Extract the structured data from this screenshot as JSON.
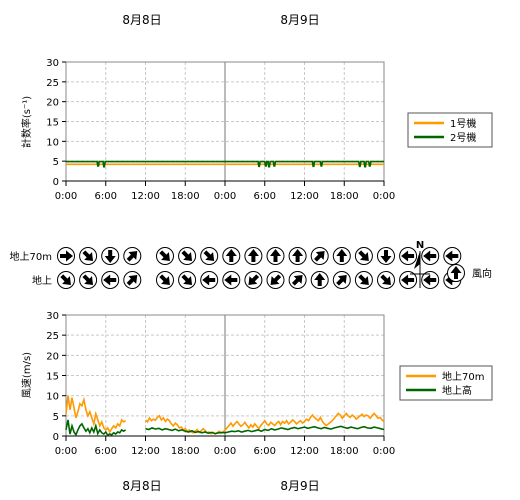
{
  "dates": {
    "day1": "8月8日",
    "day2": "8月9日"
  },
  "x_ticks": [
    "0:00",
    "6:00",
    "12:00",
    "18:00",
    "0:00",
    "6:00",
    "12:00",
    "18:00",
    "0:00"
  ],
  "chart_data": [
    {
      "type": "line",
      "ylabel": "計数率(s⁻¹)",
      "ylim": [
        0,
        30
      ],
      "y_ticks": [
        "0",
        "5",
        "10",
        "15",
        "20",
        "25",
        "30"
      ],
      "x_unit": "hours from 8月8日 0:00",
      "xlim": [
        0,
        48
      ],
      "grid": true,
      "legend_position": "right",
      "series": [
        {
          "name": "1号機",
          "color": "#ff9900",
          "x": [
            0,
            48
          ],
          "y": [
            4.2,
            4.2
          ]
        },
        {
          "name": "2号機",
          "color": "#006600",
          "x": [
            0,
            4.7,
            4.8,
            4.9,
            5.0,
            5.6,
            5.7,
            5.8,
            5.9,
            6.0,
            9,
            18,
            24,
            29,
            29.1,
            29.2,
            29.3,
            30.0,
            30.1,
            30.2,
            30.3,
            30.5,
            30.6,
            30.7,
            30.8,
            31.3,
            31.4,
            31.5,
            31.6,
            33,
            37.2,
            37.3,
            37.4,
            37.5,
            38.4,
            38.5,
            38.6,
            38.7,
            39,
            42,
            44.2,
            44.3,
            44.4,
            44.5,
            45.0,
            45.1,
            45.2,
            45.3,
            45.7,
            45.8,
            45.9,
            46.0,
            48
          ],
          "y": [
            4.9,
            4.9,
            3.8,
            3.8,
            4.9,
            4.9,
            3.6,
            3.6,
            4.9,
            4.9,
            4.9,
            4.9,
            4.9,
            4.9,
            3.7,
            3.7,
            4.9,
            4.9,
            3.8,
            3.8,
            4.9,
            4.9,
            3.6,
            3.6,
            4.9,
            4.9,
            3.8,
            3.8,
            4.9,
            4.9,
            4.9,
            3.7,
            3.7,
            4.9,
            4.9,
            3.8,
            3.8,
            4.9,
            4.9,
            4.9,
            4.9,
            3.7,
            3.7,
            4.9,
            4.9,
            3.6,
            3.6,
            4.9,
            4.9,
            3.8,
            3.8,
            4.9,
            4.9
          ]
        }
      ]
    },
    {
      "type": "line",
      "ylabel": "風速(m/s)",
      "ylim": [
        0,
        30
      ],
      "y_ticks": [
        "0",
        "5",
        "10",
        "15",
        "20",
        "25",
        "30"
      ],
      "x_unit": "hours from 8月8日 0:00",
      "xlim": [
        0,
        48
      ],
      "grid": true,
      "legend_position": "right",
      "series": [
        {
          "name": "地上70m",
          "color": "#ff9900",
          "segments": [
            {
              "x": [
                0,
                0.3,
                0.6,
                0.9,
                1.2,
                1.5,
                1.8,
                2.1,
                2.4,
                2.7,
                3.0,
                3.3,
                3.6,
                3.9,
                4.2,
                4.5,
                4.8,
                5.1,
                5.4,
                5.7,
                6.0,
                6.3,
                6.6,
                6.9,
                7.2,
                7.5,
                7.8,
                8.1,
                8.4,
                8.7,
                9.0
              ],
              "y": [
                5.5,
                10.0,
                6.5,
                9.5,
                7.0,
                4.5,
                6.0,
                8.0,
                7.5,
                9.0,
                6.5,
                5.0,
                6.0,
                4.5,
                3.0,
                5.5,
                4.0,
                2.5,
                3.5,
                2.0,
                1.5,
                2.0,
                1.0,
                1.8,
                2.5,
                2.0,
                3.0,
                2.5,
                4.0,
                3.5,
                3.8
              ]
            },
            {
              "x": [
                12.0,
                12.3,
                12.6,
                12.9,
                13.2,
                13.5,
                13.8,
                14.1,
                14.4,
                14.7,
                15.0,
                15.3,
                15.6,
                15.9,
                16.2,
                16.5,
                16.8,
                17.1,
                17.4,
                17.7,
                18.0,
                18.3,
                18.6,
                18.9,
                19.2,
                19.5,
                19.8,
                20.1,
                20.4,
                20.7,
                21.0,
                21.3,
                21.6,
                21.9,
                22.2,
                22.5,
                22.8,
                23.1,
                23.4,
                23.7,
                24.0,
                24.3,
                24.6,
                24.9,
                25.2,
                25.5,
                25.8,
                26.1,
                26.4,
                26.7,
                27.0,
                27.3,
                27.6,
                27.9,
                28.2,
                28.5,
                28.8,
                29.1,
                29.4,
                29.7,
                30.0,
                30.3,
                30.6,
                30.9,
                31.2,
                31.5,
                31.8,
                32.1,
                32.4,
                32.7,
                33.0,
                33.3,
                33.6,
                33.9,
                34.2,
                34.5,
                34.8,
                35.1,
                35.4,
                35.7,
                36.0,
                36.3,
                36.6,
                36.9,
                37.2,
                37.5,
                37.8,
                38.1,
                38.4,
                38.7,
                39.0,
                39.3,
                39.6,
                39.9,
                40.2,
                40.5,
                40.8,
                41.1,
                41.4,
                41.7,
                42.0,
                42.3,
                42.6,
                42.9,
                43.2,
                43.5,
                43.8,
                44.1,
                44.4,
                44.7,
                45.0,
                45.3,
                45.6,
                45.9,
                46.2,
                46.5,
                46.8,
                47.1,
                47.4,
                47.7,
                48.0
              ],
              "y": [
                4.0,
                3.5,
                4.5,
                3.8,
                4.2,
                3.9,
                4.6,
                5.0,
                4.0,
                4.5,
                3.6,
                4.2,
                3.8,
                3.0,
                2.5,
                3.2,
                2.8,
                2.0,
                2.2,
                1.5,
                1.8,
                1.2,
                1.5,
                1.0,
                0.8,
                1.2,
                1.6,
                0.9,
                1.3,
                1.8,
                1.4,
                0.8,
                1.0,
                0.6,
                0.9,
                0.5,
                0.8,
                1.2,
                0.7,
                1.0,
                1.5,
                2.0,
                2.6,
                3.2,
                2.4,
                3.0,
                3.6,
                3.0,
                2.4,
                2.8,
                3.4,
                2.6,
                2.0,
                2.8,
                2.2,
                3.0,
                2.4,
                1.8,
                2.6,
                3.2,
                3.8,
                3.0,
                2.6,
                3.4,
                3.0,
                2.6,
                3.2,
                3.6,
                2.8,
                3.6,
                3.2,
                3.8,
                3.0,
                3.4,
                4.0,
                3.6,
                3.0,
                3.4,
                3.8,
                3.2,
                3.6,
                4.2,
                3.8,
                4.6,
                5.2,
                4.6,
                4.2,
                3.8,
                4.6,
                3.6,
                3.0,
                2.6,
                3.0,
                3.4,
                3.8,
                4.4,
                5.0,
                5.6,
                5.2,
                4.4,
                5.0,
                5.6,
                5.0,
                4.6,
                5.2,
                4.8,
                4.2,
                4.6,
                5.0,
                5.4,
                4.8,
                5.2,
                5.0,
                4.4,
                5.0,
                5.6,
                5.0,
                4.4,
                4.6,
                4.0,
                3.6
              ]
            }
          ]
        },
        {
          "name": "地上高",
          "color": "#006600",
          "segments": [
            {
              "x": [
                0,
                0.3,
                0.6,
                0.9,
                1.2,
                1.5,
                1.8,
                2.1,
                2.4,
                2.7,
                3.0,
                3.3,
                3.6,
                3.9,
                4.2,
                4.5,
                4.8,
                5.1,
                5.4,
                5.7,
                6.0,
                6.3,
                6.6,
                6.9,
                7.2,
                7.5,
                7.8,
                8.1,
                8.4,
                8.7,
                9.0
              ],
              "y": [
                1.5,
                4.0,
                0.5,
                2.5,
                1.0,
                0.3,
                1.5,
                2.5,
                3.0,
                2.0,
                1.2,
                1.8,
                0.8,
                2.0,
                1.0,
                2.5,
                0.6,
                1.5,
                0.8,
                0.5,
                1.0,
                0.2,
                0.5,
                0.3,
                0.8,
                0.5,
                1.0,
                0.8,
                1.5,
                1.2,
                1.5
              ]
            },
            {
              "x": [
                12.0,
                12.5,
                13.0,
                13.5,
                14.0,
                14.5,
                15.0,
                15.5,
                16.0,
                16.5,
                17.0,
                17.5,
                18.0,
                18.5,
                19.0,
                19.5,
                20.0,
                20.5,
                21.0,
                21.5,
                22.0,
                22.5,
                23.0,
                23.5,
                24.0,
                24.5,
                25.0,
                25.5,
                26.0,
                26.5,
                27.0,
                27.5,
                28.0,
                28.5,
                29.0,
                29.5,
                30.0,
                30.5,
                31.0,
                31.5,
                32.0,
                32.5,
                33.0,
                33.5,
                34.0,
                34.5,
                35.0,
                35.5,
                36.0,
                36.5,
                37.0,
                37.5,
                38.0,
                38.5,
                39.0,
                39.5,
                40.0,
                40.5,
                41.0,
                41.5,
                42.0,
                42.5,
                43.0,
                43.5,
                44.0,
                44.5,
                45.0,
                45.5,
                46.0,
                46.5,
                47.0,
                47.5,
                48.0
              ],
              "y": [
                1.8,
                1.6,
                2.0,
                1.7,
                1.9,
                1.5,
                1.8,
                1.6,
                1.4,
                1.7,
                1.3,
                1.5,
                1.2,
                1.0,
                1.3,
                0.9,
                1.1,
                0.8,
                1.0,
                0.7,
                0.9,
                0.6,
                0.8,
                0.9,
                0.8,
                1.0,
                1.2,
                1.1,
                1.3,
                1.0,
                1.2,
                1.4,
                1.1,
                1.3,
                1.5,
                1.2,
                1.6,
                1.4,
                1.8,
                1.5,
                1.7,
                2.0,
                1.8,
                1.6,
                1.9,
                2.1,
                1.8,
                2.0,
                2.2,
                1.9,
                2.1,
                2.3,
                2.0,
                1.8,
                2.1,
                1.9,
                1.7,
                2.0,
                2.2,
                2.4,
                2.1,
                1.9,
                2.2,
                2.0,
                1.8,
                2.1,
                2.3,
                2.0,
                1.9,
                2.2,
                2.0,
                1.8,
                1.6
              ]
            }
          ]
        }
      ]
    }
  ],
  "wind": {
    "row_labels": {
      "upper": "地上70m",
      "lower": "地上"
    },
    "upper": [
      {
        "group": 1,
        "dirs": [
          90,
          135,
          180,
          45
        ]
      },
      {
        "group": 2,
        "dirs": [
          135,
          135,
          135,
          0,
          0,
          0,
          0,
          45,
          0,
          135,
          180,
          270,
          270,
          270
        ]
      }
    ],
    "lower": [
      {
        "group": 1,
        "dirs": [
          135,
          135,
          270,
          45
        ]
      },
      {
        "group": 2,
        "dirs": [
          135,
          135,
          270,
          270,
          225,
          225,
          45,
          0,
          45,
          135,
          135,
          270,
          270,
          270
        ]
      }
    ],
    "compass_label": "N",
    "legend_label": "風向"
  }
}
